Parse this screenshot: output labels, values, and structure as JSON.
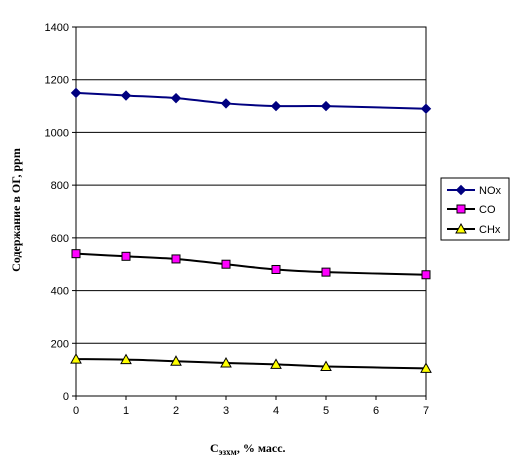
{
  "chart_data": {
    "type": "line",
    "title": "",
    "xlabel_main": "C",
    "xlabel_sub": "эзхм",
    "xlabel_rest": ", % масс.",
    "ylabel": "Содержание в ОГ,  ppm",
    "xlim": [
      0,
      7
    ],
    "ylim": [
      0,
      1400
    ],
    "x_ticks": [
      "0",
      "1",
      "2",
      "3",
      "4",
      "5",
      "6",
      "7"
    ],
    "y_ticks": [
      "0",
      "200",
      "400",
      "600",
      "800",
      "1000",
      "1200",
      "1400"
    ],
    "grid": "horizontal",
    "legend_position": "right",
    "series": [
      {
        "name": "NOx",
        "marker": "diamond",
        "color": "#000080",
        "fill": "#000080",
        "x": [
          0,
          1,
          2,
          3,
          4,
          5,
          7
        ],
        "values": [
          1150,
          1140,
          1130,
          1110,
          1100,
          1100,
          1090
        ]
      },
      {
        "name": "CO",
        "marker": "square",
        "color": "#000000",
        "fill": "#ff00ff",
        "x": [
          0,
          1,
          2,
          3,
          4,
          5,
          7
        ],
        "values": [
          540,
          530,
          520,
          500,
          480,
          470,
          460
        ]
      },
      {
        "name": "CHx",
        "marker": "triangle",
        "color": "#000000",
        "fill": "#ffff00",
        "x": [
          0,
          1,
          2,
          3,
          4,
          5,
          7
        ],
        "values": [
          140,
          138,
          132,
          125,
          120,
          112,
          105
        ]
      }
    ]
  }
}
